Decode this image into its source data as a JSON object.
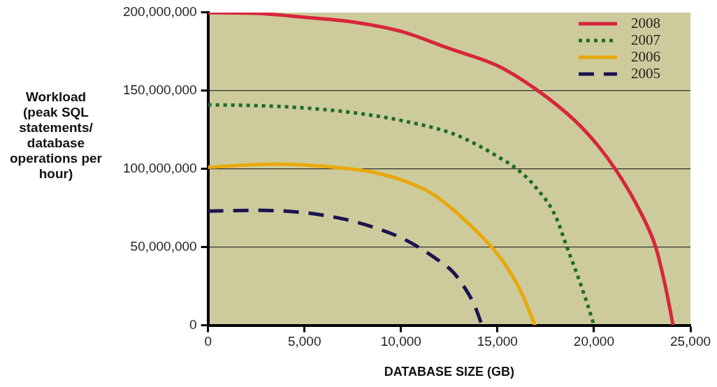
{
  "chart_data": {
    "type": "line",
    "xlabel": "DATABASE SIZE (GB)",
    "ylabel": "Workload (peak SQL statements/ database operations per hour)",
    "xlim": [
      0,
      25000
    ],
    "xticks": [
      0,
      {
        "value": 5000,
        "label": "5,000"
      },
      {
        "value": 10000,
        "label": "10,000"
      },
      {
        "value": 15000,
        "label": "15,000"
      },
      {
        "value": 20000,
        "label": "20,000"
      },
      {
        "value": 25000,
        "label": "25,000"
      }
    ],
    "ylim": [
      0,
      200000000
    ],
    "yticks": [
      0,
      {
        "value": 50000000,
        "label": "50,000,000"
      },
      {
        "value": 100000000,
        "label": "100,000,000"
      },
      {
        "value": 150000000,
        "label": "150,000,000"
      },
      {
        "value": 200000000,
        "label": "200,000,000"
      }
    ],
    "grid": "y",
    "legend": "top right",
    "marker": "none",
    "series": [
      {
        "name": "2008",
        "color": "#d7263d",
        "line_style": "solid",
        "x": [
          0,
          2500,
          5000,
          7500,
          10000,
          12500,
          15000,
          17100,
          19000,
          20200,
          21100,
          22300,
          23200,
          23700,
          24100
        ],
        "values": [
          200000000,
          199500000,
          197000000,
          194000000,
          188000000,
          177000000,
          166000000,
          150000000,
          131000000,
          115000000,
          100000000,
          75000000,
          50000000,
          25000000,
          0
        ]
      },
      {
        "name": "2007",
        "color": "#1d6b2a",
        "line_style": "dotted",
        "x": [
          0,
          2500,
          5000,
          7500,
          10000,
          12700,
          14000,
          15000,
          16000,
          17000,
          18000,
          18600,
          19200,
          19700,
          20000
        ],
        "values": [
          141000000,
          140500000,
          139000000,
          136000000,
          131000000,
          122500000,
          115000000,
          108000000,
          100000000,
          88000000,
          70000000,
          50000000,
          30000000,
          12000000,
          0
        ]
      },
      {
        "name": "2006",
        "color": "#e8a80c",
        "line_style": "solid",
        "x": [
          0,
          2000,
          3500,
          5000,
          7000,
          8500,
          10000,
          11500,
          12700,
          13500,
          14700,
          15500,
          16200,
          16950
        ],
        "values": [
          101000000,
          102500000,
          103000000,
          102500000,
          100500000,
          98000000,
          93000000,
          85000000,
          74000000,
          65000000,
          50000000,
          37000000,
          22000000,
          0
        ]
      },
      {
        "name": "2005",
        "color": "#1a1450",
        "line_style": "dashed",
        "x": [
          0,
          2500,
          5000,
          7000,
          8500,
          10000,
          10900,
          12000,
          12700,
          13300,
          13800,
          14200
        ],
        "values": [
          73000000,
          73500000,
          72000000,
          68000000,
          63000000,
          56000000,
          50000000,
          41000000,
          34000000,
          24000000,
          13000000,
          0
        ]
      }
    ]
  }
}
